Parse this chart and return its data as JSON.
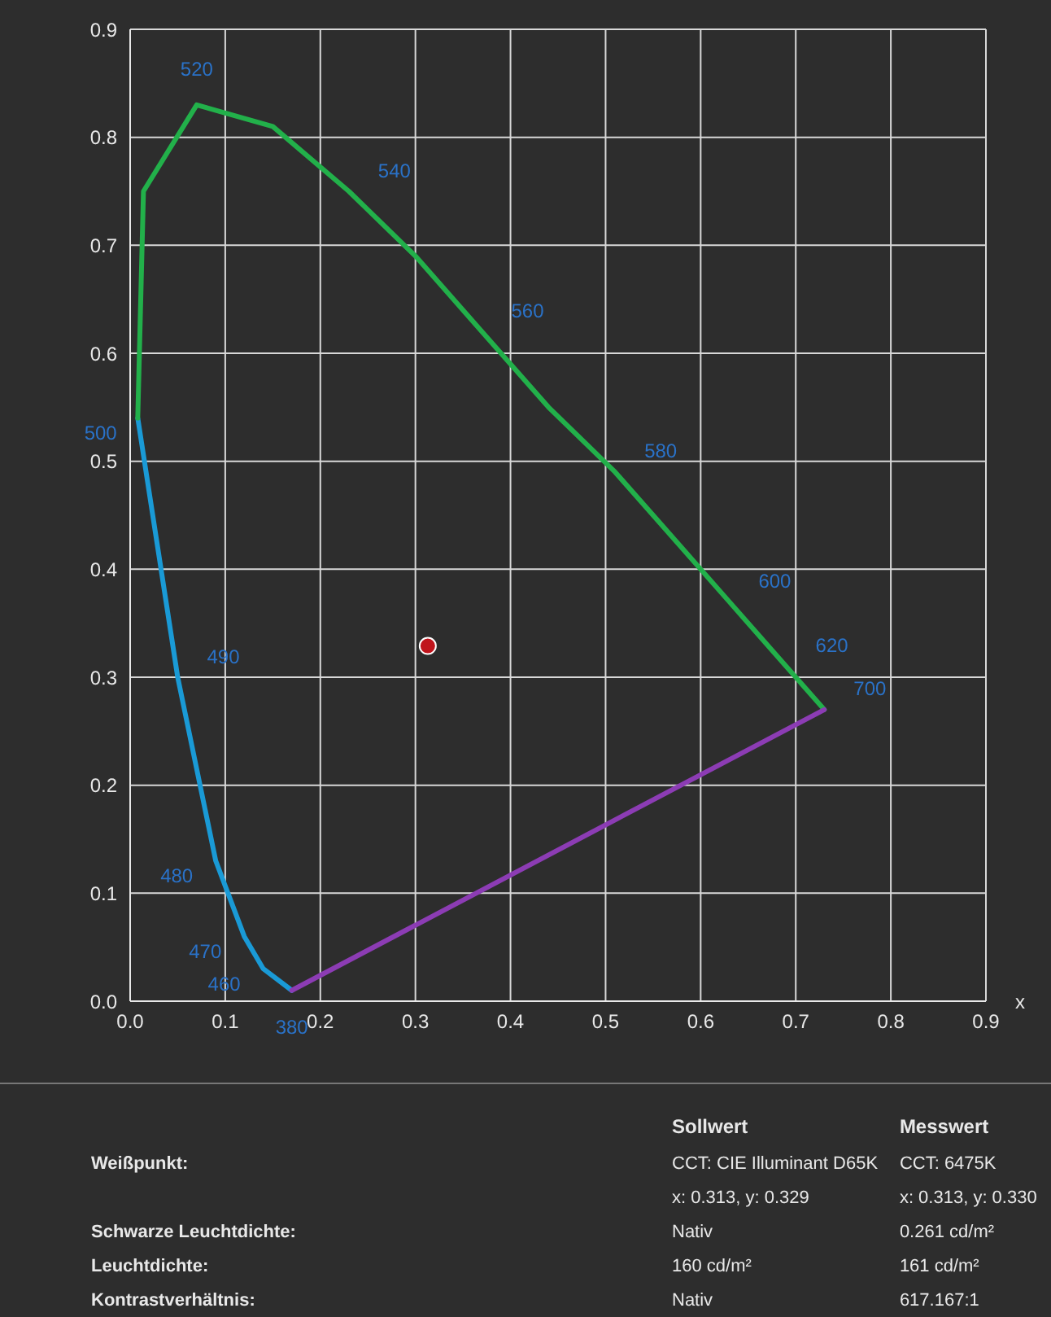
{
  "chart_data": {
    "type": "line",
    "xlabel": "x",
    "series": [
      {
        "color": "#1a9ad6",
        "marker": "none",
        "x": [
          0.17,
          0.14,
          0.12,
          0.09,
          0.05,
          0.008
        ],
        "values": [
          0.01,
          0.03,
          0.06,
          0.13,
          0.3,
          0.54
        ]
      },
      {
        "color": "#22b04a",
        "marker": "none",
        "x": [
          0.008,
          0.014,
          0.07,
          0.15,
          0.23,
          0.3,
          0.37,
          0.44,
          0.51,
          0.58,
          0.63,
          0.69,
          0.73
        ],
        "values": [
          0.54,
          0.75,
          0.83,
          0.81,
          0.75,
          0.69,
          0.62,
          0.55,
          0.49,
          0.42,
          0.37,
          0.31,
          0.27
        ]
      },
      {
        "color": "#8c3cb4",
        "marker": "none",
        "x": [
          0.17,
          0.73
        ],
        "values": [
          0.01,
          0.27
        ]
      },
      {
        "type": "scatter",
        "color": "#c0141c",
        "marker": "circle",
        "x": [
          0.313
        ],
        "values": [
          0.329
        ]
      }
    ],
    "xlim": [
      0,
      0.9
    ],
    "ylim": [
      0,
      0.9
    ],
    "xticks": [
      {
        "value": 0,
        "label": "0.0"
      },
      0.1,
      0.2,
      0.3,
      0.4,
      0.5,
      0.6,
      0.7,
      0.8,
      0.9
    ],
    "yticks": [
      {
        "value": 0,
        "label": "0.0"
      },
      0.1,
      0.2,
      0.3,
      0.4,
      0.5,
      0.6,
      0.7,
      0.8,
      0.9
    ],
    "grid": true,
    "annotations": [
      {
        "text": "380",
        "x": 0.17,
        "y": 0.01
      },
      {
        "text": "460",
        "x": 0.14,
        "y": 0.03
      },
      {
        "text": "470",
        "x": 0.12,
        "y": 0.06
      },
      {
        "text": "480",
        "x": 0.09,
        "y": 0.13
      },
      {
        "text": "490",
        "x": 0.05,
        "y": 0.3
      },
      {
        "text": "500",
        "x": 0.01,
        "y": 0.54
      },
      {
        "text": "520",
        "x": 0.07,
        "y": 0.83
      },
      {
        "text": "540",
        "x": 0.23,
        "y": 0.75
      },
      {
        "text": "560",
        "x": 0.37,
        "y": 0.62
      },
      {
        "text": "580",
        "x": 0.51,
        "y": 0.49
      },
      {
        "text": "600",
        "x": 0.63,
        "y": 0.37
      },
      {
        "text": "620",
        "x": 0.69,
        "y": 0.31
      },
      {
        "text": "700",
        "x": 0.73,
        "y": 0.27
      },
      "Sollwert",
      "Messwert",
      "Weißpunkt:",
      "CCT: CIE Illuminant D65K",
      "CCT: 6475K",
      "x: 0.313, y: 0.329",
      "x: 0.313, y: 0.330",
      "Schwarze Leuchtdichte:",
      "Nativ",
      "0.261 cd/m²",
      "Leuchtdichte:",
      "160 cd/m²",
      "161 cd/m²",
      "Kontrastverhältnis:",
      "Nativ",
      "617.167:1"
    ]
  }
}
